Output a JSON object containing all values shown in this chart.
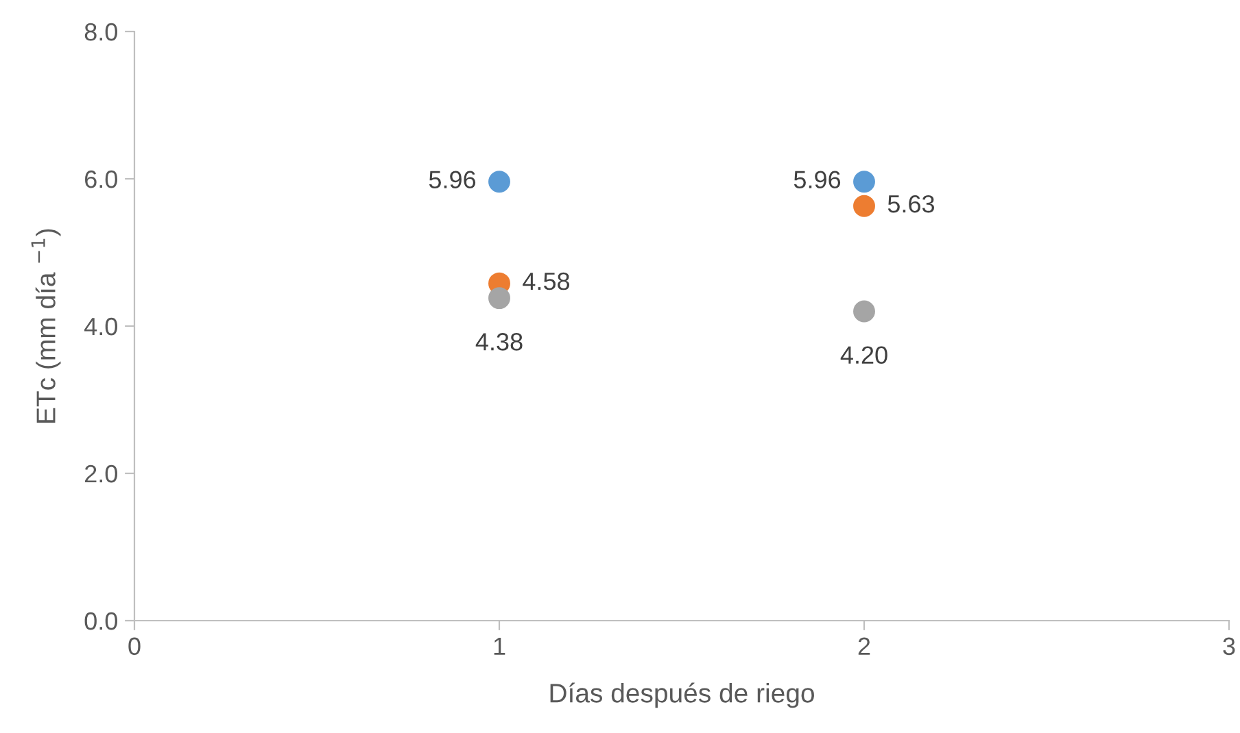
{
  "chart_data": {
    "type": "scatter",
    "xlabel": "Días después de riego",
    "ylabel": "ETc (mm día $^{−1}$)",
    "xlim": [
      0,
      3
    ],
    "xticks": [
      0,
      1,
      2,
      3
    ],
    "ylim": [
      0,
      8
    ],
    "yticks": [
      {
        "value": 0,
        "label": "0.0"
      },
      {
        "value": 2,
        "label": "2.0"
      },
      {
        "value": 4,
        "label": "4.0"
      },
      {
        "value": 6,
        "label": "6.0"
      },
      {
        "value": 8,
        "label": "8.0"
      }
    ],
    "grid": false,
    "marker": "circle",
    "x": [
      1,
      2
    ],
    "series": [
      {
        "color": "#5b9bd5",
        "values": [
          5.96,
          5.96
        ],
        "value_labels": [
          "5.96",
          "5.96"
        ]
      },
      {
        "color": "#ed7d31",
        "values": [
          4.58,
          5.63
        ],
        "value_labels": [
          "4.58",
          "5.63"
        ]
      },
      {
        "color": "#a5a5a5",
        "values": [
          4.38,
          4.2
        ],
        "value_labels": [
          "4.38",
          "4.20"
        ]
      }
    ]
  }
}
